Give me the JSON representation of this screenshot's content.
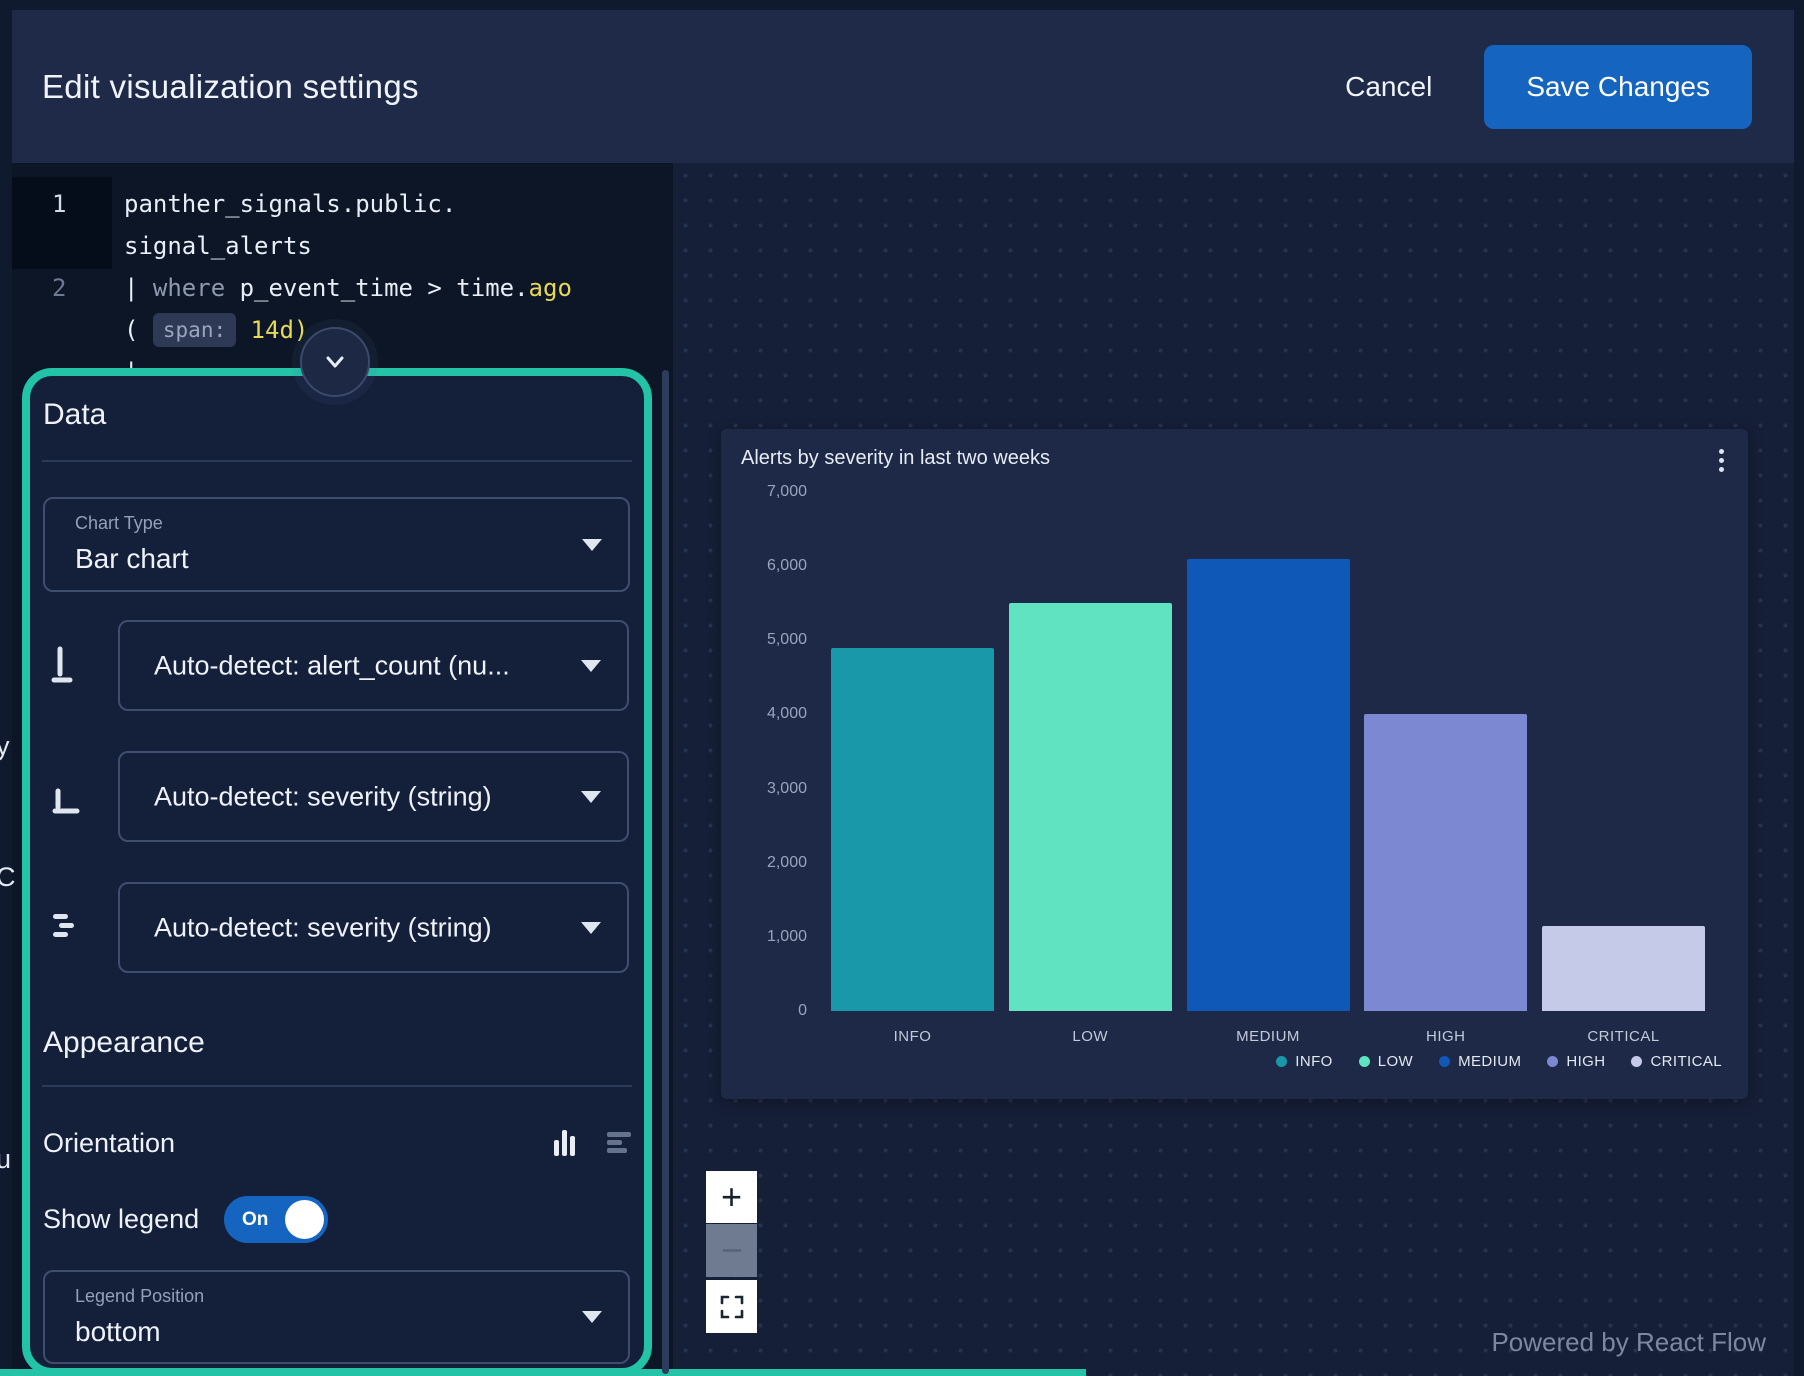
{
  "header": {
    "title": "Edit visualization settings",
    "cancel_label": "Cancel",
    "save_label": "Save Changes"
  },
  "editor": {
    "line_numbers": [
      "1",
      "2"
    ],
    "line1_row1": "panther_signals.public.",
    "line1_row2": "signal_alerts",
    "line2": {
      "pipe": "|",
      "keyword": "where",
      "field": "p_event_time",
      "operator": ">",
      "func": "time",
      "dot": ".",
      "method": "ago",
      "paren_open": "(",
      "param_chip": "span:",
      "value": "14d",
      "paren_close": ")"
    },
    "line3_fragment": "|"
  },
  "panel": {
    "data_heading": "Data",
    "chart_type": {
      "label": "Chart Type",
      "value": "Bar chart"
    },
    "fields": [
      {
        "value": "Auto-detect: alert_count (nu..."
      },
      {
        "value": "Auto-detect: severity (string)"
      },
      {
        "value": "Auto-detect: severity (string)"
      }
    ],
    "appearance_heading": "Appearance",
    "orientation_label": "Orientation",
    "show_legend_label": "Show legend",
    "toggle_on_label": "On",
    "legend_position": {
      "label": "Legend Position",
      "value": "bottom"
    }
  },
  "chart_data": {
    "type": "bar",
    "title": "Alerts by severity in last two weeks",
    "categories": [
      "INFO",
      "LOW",
      "MEDIUM",
      "HIGH",
      "CRITICAL"
    ],
    "values": [
      4900,
      5500,
      6100,
      4000,
      1150
    ],
    "colors": [
      "#1898a8",
      "#5fe3c0",
      "#1058b8",
      "#7d88d3",
      "#c5cae9"
    ],
    "xlabel": "",
    "ylabel": "",
    "ylim": [
      0,
      7000
    ],
    "ytick_labels": [
      "0",
      "1,000",
      "2,000",
      "3,000",
      "4,000",
      "5,000",
      "6,000",
      "7,000"
    ],
    "legend": [
      "INFO",
      "LOW",
      "MEDIUM",
      "HIGH",
      "CRITICAL"
    ],
    "legend_position": "bottom-right",
    "grid": false
  },
  "canvas": {
    "attribution": "Powered by React Flow",
    "zoom_in_label": "+"
  },
  "edge_fragments": [
    "y",
    "C",
    "u"
  ],
  "icons": {
    "chevron_down": "▾",
    "collapse_chevron": "⌄",
    "kebab_menu": "⋮",
    "zoom_in": "+",
    "fit_view": "⛶"
  },
  "colors": {
    "highlight_green": "#22c3a6",
    "save_button_blue": "#1565c0",
    "code_yellow": "#e7d957"
  }
}
